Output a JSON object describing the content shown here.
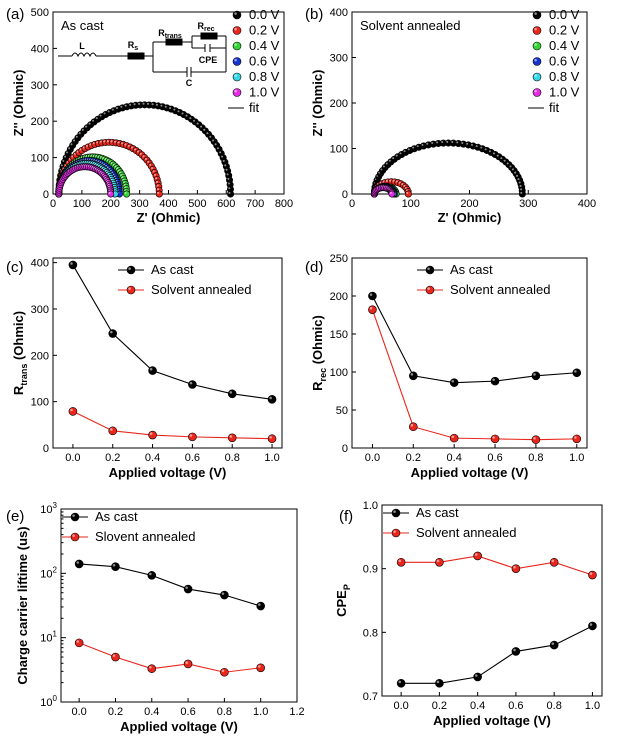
{
  "colors": {
    "black": "#000000",
    "red": "#e8261c",
    "green": "#35d435",
    "blue": "#1533cf",
    "cyan": "#33d7e6",
    "magenta": "#e22be2"
  },
  "chart_data": [
    {
      "panel": "(a)",
      "type": "scatter",
      "title": "As cast",
      "xlabel": "Z' (Ohmic)",
      "ylabel": "Z'' (Ohmic)",
      "xlim": [
        0,
        800
      ],
      "ylim": [
        0,
        500
      ],
      "xticks": [
        0,
        100,
        200,
        300,
        400,
        500,
        600,
        700,
        800
      ],
      "yticks": [
        0,
        100,
        200,
        300,
        400,
        500
      ],
      "legend_position": "top-right",
      "fit_label": "fit",
      "circuit": {
        "L": "L",
        "Rs": "R",
        "Rs_sub": "s",
        "Rtrans": "R",
        "Rtrans_sub": "trans",
        "Rrec": "R",
        "Rrec_sub": "rec",
        "CPE": "CPE",
        "C": "C"
      },
      "series": [
        {
          "name": "0.0 V",
          "color": "black",
          "x_min": 20,
          "x_max": 615,
          "y_peak": 245
        },
        {
          "name": "0.2 V",
          "color": "red",
          "x_min": 20,
          "x_max": 368,
          "y_peak": 142
        },
        {
          "name": "0.4 V",
          "color": "green",
          "x_min": 20,
          "x_max": 255,
          "y_peak": 102
        },
        {
          "name": "0.6 V",
          "color": "blue",
          "x_min": 20,
          "x_max": 230,
          "y_peak": 92
        },
        {
          "name": "0.8 V",
          "color": "cyan",
          "x_min": 20,
          "x_max": 215,
          "y_peak": 84
        },
        {
          "name": "1.0 V",
          "color": "magenta",
          "x_min": 20,
          "x_max": 200,
          "y_peak": 75
        }
      ]
    },
    {
      "panel": "(b)",
      "type": "scatter",
      "title": "Solvent annealed",
      "xlabel": "Z' (Ohmic)",
      "ylabel": "Z'' (Ohmic)",
      "xlim": [
        0,
        400
      ],
      "ylim": [
        0,
        400
      ],
      "xticks": [
        0,
        100,
        200,
        300,
        400
      ],
      "yticks": [
        0,
        100,
        200,
        300,
        400
      ],
      "legend_position": "top-right",
      "fit_label": "fit",
      "series": [
        {
          "name": "0.0 V",
          "color": "black",
          "x_min": 38,
          "x_max": 290,
          "y_peak": 112
        },
        {
          "name": "0.2 V",
          "color": "red",
          "x_min": 38,
          "x_max": 96,
          "y_peak": 27
        },
        {
          "name": "0.4 V",
          "color": "green",
          "x_min": 38,
          "x_max": 75,
          "y_peak": 17
        },
        {
          "name": "0.6 V",
          "color": "blue",
          "x_min": 38,
          "x_max": 72,
          "y_peak": 16
        },
        {
          "name": "0.8 V",
          "color": "cyan",
          "x_min": 38,
          "x_max": 70,
          "y_peak": 15
        },
        {
          "name": "1.0 V",
          "color": "magenta",
          "x_min": 38,
          "x_max": 68,
          "y_peak": 14
        }
      ]
    },
    {
      "panel": "(c)",
      "type": "line",
      "ylabel_main": "R",
      "ylabel_sub": "trans",
      "ylabel_tail": " (Ohmic)",
      "xlabel": "Applied voltage (V)",
      "xlim": [
        -0.1,
        1.05
      ],
      "ylim": [
        0,
        410
      ],
      "xticks": [
        "0.0",
        "0.2",
        "0.4",
        "0.6",
        "0.8",
        "1.0"
      ],
      "yticks": [
        "0",
        "100",
        "200",
        "300",
        "400"
      ],
      "x": [
        0.0,
        0.2,
        0.4,
        0.6,
        0.8,
        1.0
      ],
      "legend_position": "top-right",
      "series": [
        {
          "name": "As cast",
          "color": "black",
          "values": [
            395,
            247,
            167,
            137,
            117,
            105
          ]
        },
        {
          "name": "Solvent annealed",
          "color": "red",
          "values": [
            79,
            37,
            28,
            24,
            22,
            20
          ]
        }
      ]
    },
    {
      "panel": "(d)",
      "type": "line",
      "ylabel_main": "R",
      "ylabel_sub": "rec",
      "ylabel_tail": " (Ohmic)",
      "xlabel": "Applied voltage (V)",
      "xlim": [
        -0.1,
        1.05
      ],
      "ylim": [
        0,
        250
      ],
      "xticks": [
        "0.0",
        "0.2",
        "0.4",
        "0.6",
        "0.8",
        "1.0"
      ],
      "yticks": [
        "0",
        "50",
        "100",
        "150",
        "200",
        "250"
      ],
      "x": [
        0.0,
        0.2,
        0.4,
        0.6,
        0.8,
        1.0
      ],
      "legend_position": "top-right",
      "series": [
        {
          "name": "As cast",
          "color": "black",
          "values": [
            200,
            95,
            86,
            88,
            95,
            99
          ]
        },
        {
          "name": "Solvent annealed",
          "color": "red",
          "values": [
            182,
            28,
            13,
            12,
            11,
            12
          ]
        }
      ]
    },
    {
      "panel": "(e)",
      "type": "line",
      "scale": "log",
      "ylabel": "Charge carrier liftime (us)",
      "xlabel": "Applied voltage (V)",
      "xlim": [
        -0.1,
        1.2
      ],
      "ylim": [
        1,
        1000
      ],
      "xticks": [
        "0.0",
        "0.2",
        "0.4",
        "0.6",
        "0.8",
        "1.0",
        "1.2"
      ],
      "yticks": [
        {
          "base": "10",
          "exp": "0"
        },
        {
          "base": "10",
          "exp": "1"
        },
        {
          "base": "10",
          "exp": "2"
        },
        {
          "base": "10",
          "exp": "3"
        }
      ],
      "x": [
        0.0,
        0.2,
        0.4,
        0.6,
        0.8,
        1.0
      ],
      "legend_position": "top-left",
      "series": [
        {
          "name": "As cast",
          "color": "black",
          "values": [
            140,
            127,
            93,
            57,
            46,
            31
          ]
        },
        {
          "name": "Slovent annealed",
          "color": "red",
          "values": [
            8.3,
            5.0,
            3.3,
            3.9,
            2.9,
            3.4
          ]
        }
      ]
    },
    {
      "panel": "(f)",
      "type": "line",
      "ylabel_main": "CPE",
      "ylabel_sub": "P",
      "xlabel": "Applied voltage (V)",
      "xlim": [
        -0.1,
        1.05
      ],
      "ylim": [
        0.7,
        1.0
      ],
      "xticks": [
        "0.0",
        "0.2",
        "0.4",
        "0.6",
        "0.8",
        "1.0"
      ],
      "yticks": [
        "0.7",
        "0.8",
        "0.9",
        "1.0"
      ],
      "x": [
        0.0,
        0.2,
        0.4,
        0.6,
        0.8,
        1.0
      ],
      "legend_position": "top-left",
      "series": [
        {
          "name": "As cast",
          "color": "black",
          "values": [
            0.72,
            0.72,
            0.73,
            0.77,
            0.78,
            0.81
          ]
        },
        {
          "name": "Solvent annealed",
          "color": "red",
          "values": [
            0.91,
            0.91,
            0.92,
            0.9,
            0.91,
            0.89
          ]
        }
      ]
    }
  ]
}
